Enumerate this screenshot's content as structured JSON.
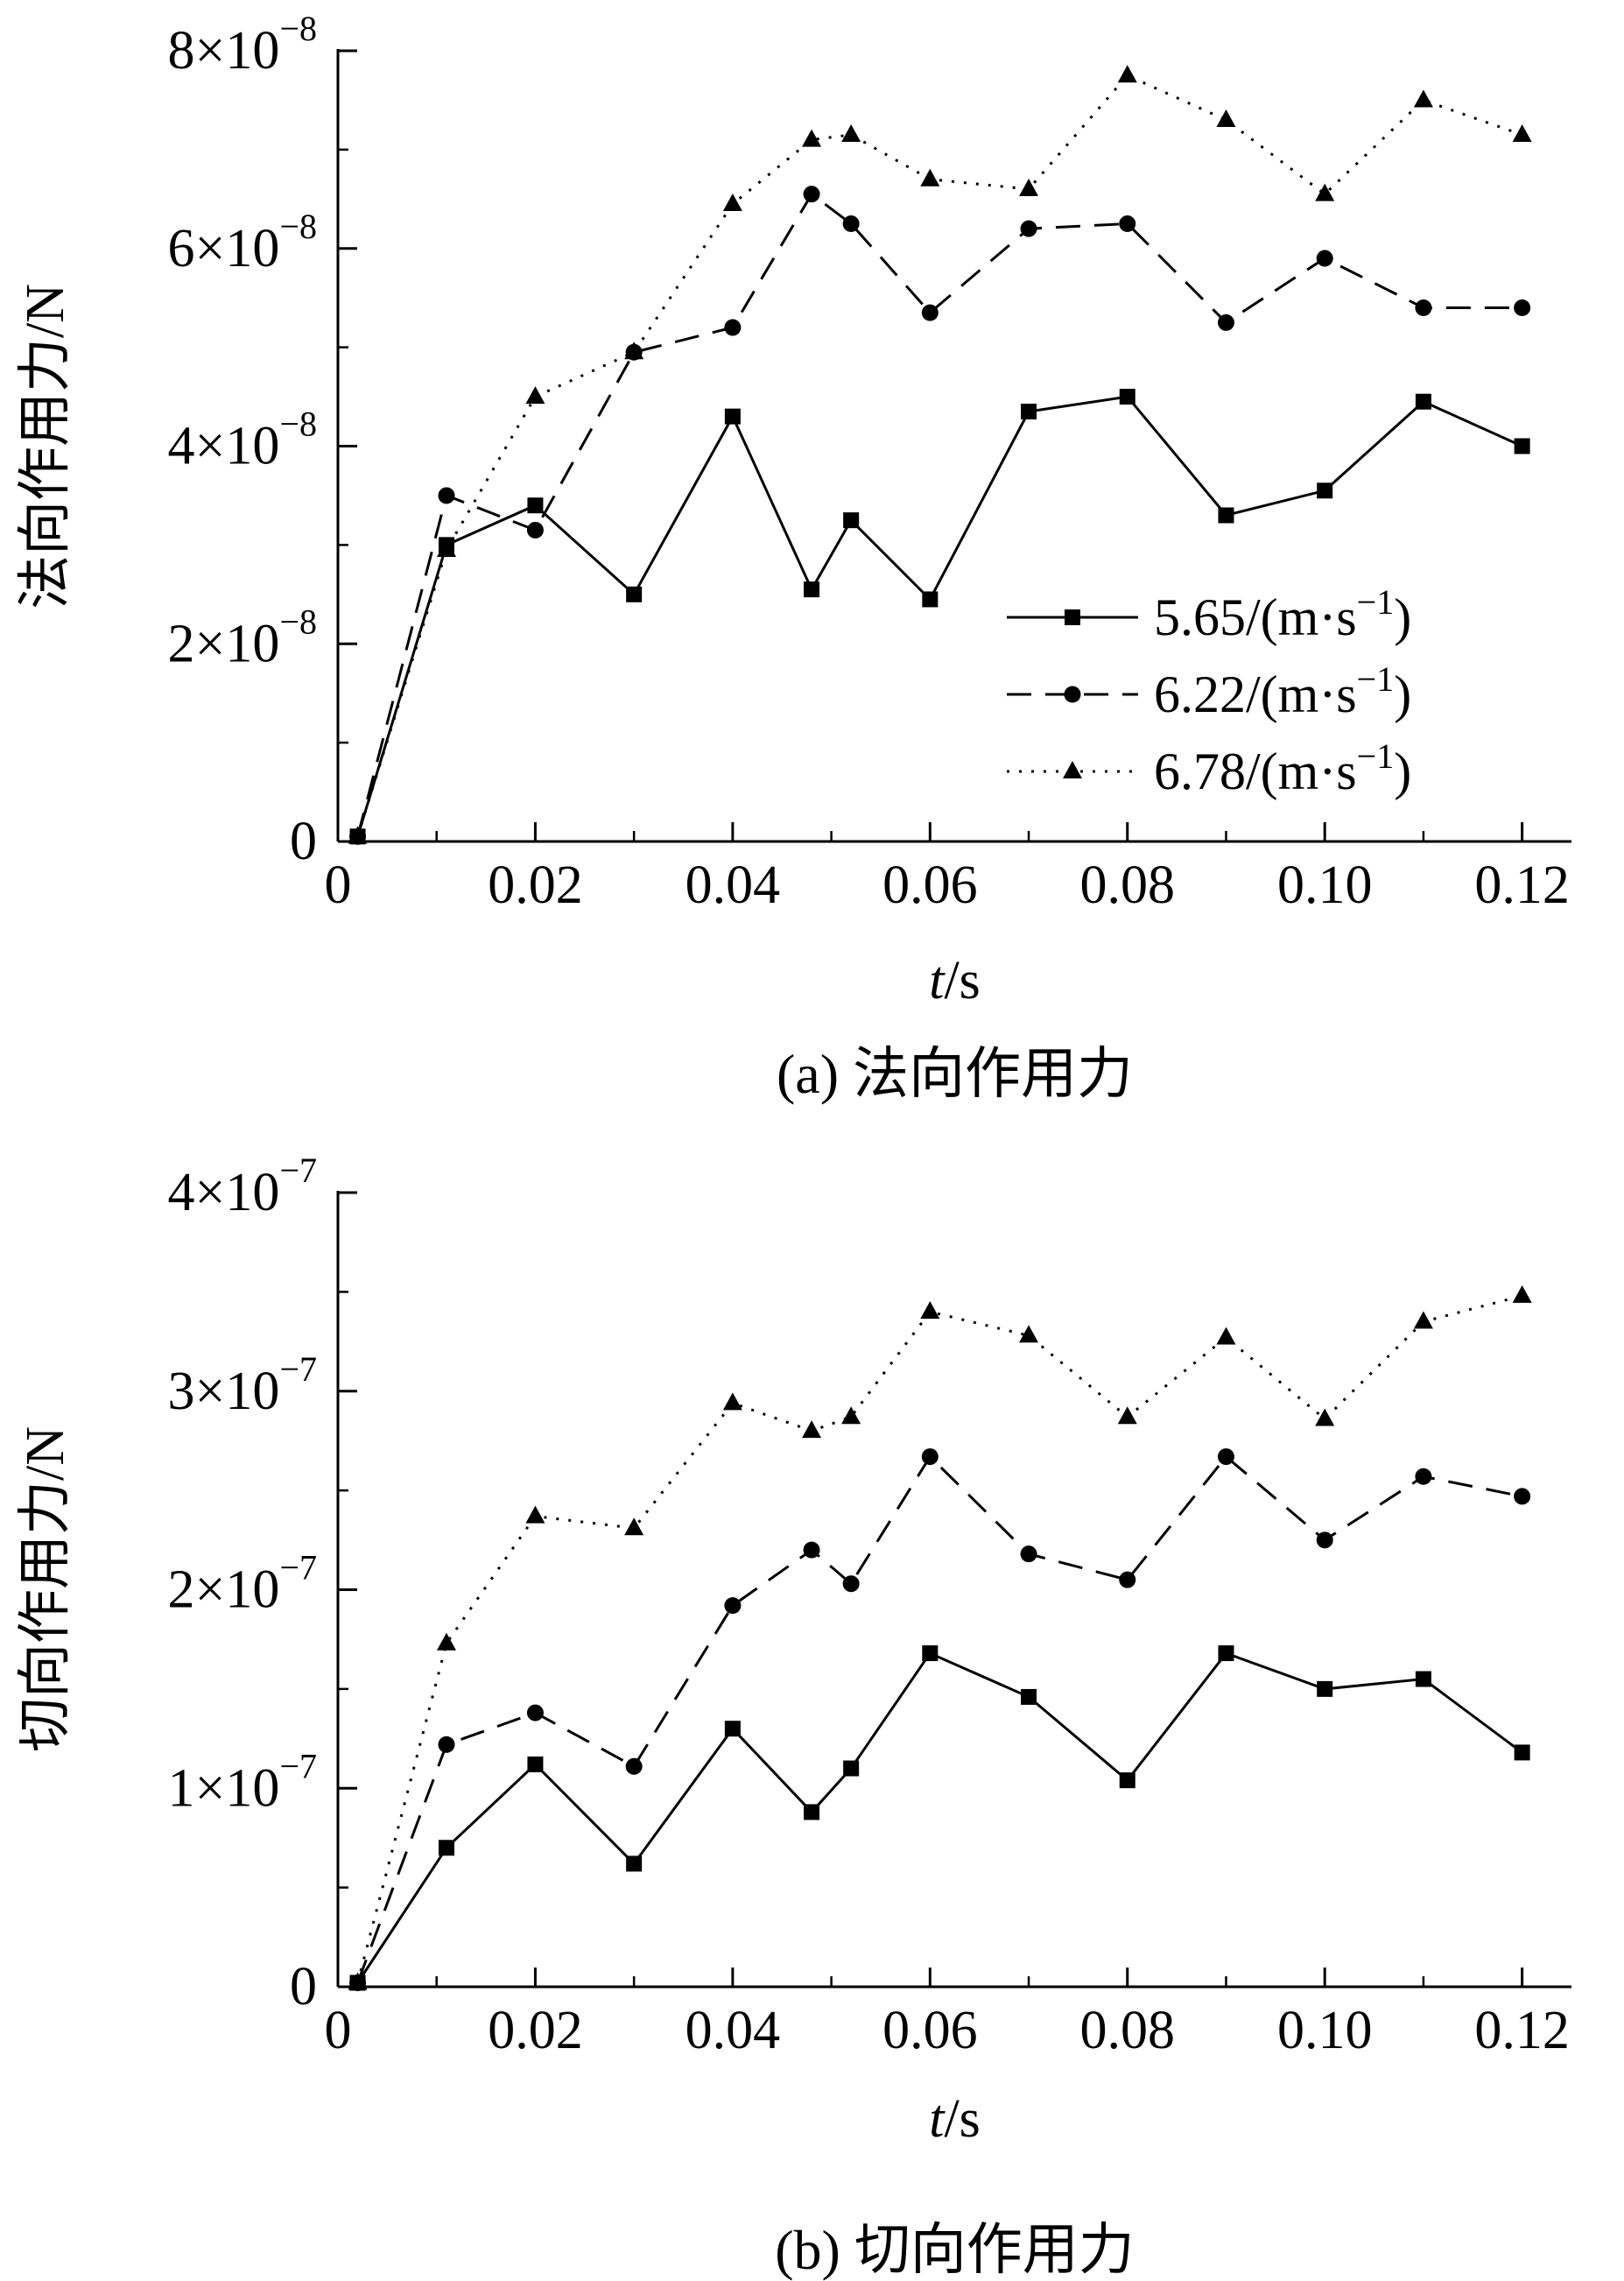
{
  "figure": {
    "background": "#ffffff",
    "ink": "#000000"
  },
  "chart_data": [
    {
      "type": "line",
      "caption": "(a) 法向作用力",
      "xlabel_italic": "t",
      "xlabel_rest": "/s",
      "ylabel": "法向作用力/N",
      "value_scale": "1e-8",
      "xlim": [
        0,
        0.125
      ],
      "ylim": [
        0,
        8
      ],
      "grid": false,
      "x": [
        0.002,
        0.011,
        0.02,
        0.03,
        0.04,
        0.048,
        0.052,
        0.06,
        0.07,
        0.08,
        0.09,
        0.1,
        0.11,
        0.12
      ],
      "xticks": [
        {
          "v": 0,
          "label": "0"
        },
        {
          "v": 0.02,
          "label": "0.02"
        },
        {
          "v": 0.04,
          "label": "0.04"
        },
        {
          "v": 0.06,
          "label": "0.06"
        },
        {
          "v": 0.08,
          "label": "0.08"
        },
        {
          "v": 0.1,
          "label": "0.10"
        },
        {
          "v": 0.12,
          "label": "0.12"
        }
      ],
      "xminor_step": 0.01,
      "yticks": [
        {
          "v": 0,
          "text": "0",
          "exp": ""
        },
        {
          "v": 2,
          "text": "2×10",
          "exp": "−8"
        },
        {
          "v": 4,
          "text": "4×10",
          "exp": "−8"
        },
        {
          "v": 6,
          "text": "6×10",
          "exp": "−8"
        },
        {
          "v": 8,
          "text": "8×10",
          "exp": "−8"
        }
      ],
      "yminor_step": 1,
      "legend": {
        "position": "inside-right-middle",
        "items": [
          {
            "pre": "5.65/(m·s",
            "sup": "−1",
            "post": ")"
          },
          {
            "pre": "6.22/(m·s",
            "sup": "−1",
            "post": ")"
          },
          {
            "pre": "6.78/(m·s",
            "sup": "−1",
            "post": ")"
          }
        ]
      },
      "series": [
        {
          "name": "5.65/(m·s−1)",
          "marker": "square",
          "line": "solid",
          "values": [
            0.05,
            3.0,
            3.4,
            2.5,
            4.3,
            2.55,
            3.25,
            2.45,
            4.35,
            4.5,
            3.3,
            3.55,
            4.45,
            4.0
          ]
        },
        {
          "name": "6.22/(m·s−1)",
          "marker": "circle",
          "line": "dashed",
          "values": [
            0.05,
            3.5,
            3.15,
            4.95,
            5.2,
            6.55,
            6.25,
            5.35,
            6.2,
            6.25,
            5.25,
            5.9,
            5.4,
            5.4
          ]
        },
        {
          "name": "6.78/(m·s−1)",
          "marker": "triangle",
          "line": "dotted",
          "values": [
            0.05,
            2.95,
            4.5,
            4.95,
            6.45,
            7.1,
            7.15,
            6.7,
            6.6,
            7.75,
            7.3,
            6.55,
            7.5,
            7.15
          ]
        }
      ]
    },
    {
      "type": "line",
      "caption": "(b) 切向作用力",
      "xlabel_italic": "t",
      "xlabel_rest": "/s",
      "ylabel": "切向作用力/N",
      "value_scale": "1e-7",
      "xlim": [
        0,
        0.125
      ],
      "ylim": [
        0,
        4
      ],
      "grid": false,
      "x": [
        0.002,
        0.011,
        0.02,
        0.03,
        0.04,
        0.048,
        0.052,
        0.06,
        0.07,
        0.08,
        0.09,
        0.1,
        0.11,
        0.12
      ],
      "xticks": [
        {
          "v": 0,
          "label": "0"
        },
        {
          "v": 0.02,
          "label": "0.02"
        },
        {
          "v": 0.04,
          "label": "0.04"
        },
        {
          "v": 0.06,
          "label": "0.06"
        },
        {
          "v": 0.08,
          "label": "0.08"
        },
        {
          "v": 0.1,
          "label": "0.10"
        },
        {
          "v": 0.12,
          "label": "0.12"
        }
      ],
      "xminor_step": 0.01,
      "yticks": [
        {
          "v": 0,
          "text": "0",
          "exp": ""
        },
        {
          "v": 1,
          "text": "1×10",
          "exp": "−7"
        },
        {
          "v": 2,
          "text": "2×10",
          "exp": "−7"
        },
        {
          "v": 3,
          "text": "3×10",
          "exp": "−7"
        },
        {
          "v": 4,
          "text": "4×10",
          "exp": "−7"
        }
      ],
      "yminor_step": 0.5,
      "legend": null,
      "series": [
        {
          "name": "5.65/(m·s−1)",
          "marker": "square",
          "line": "solid",
          "values": [
            0.02,
            0.7,
            1.12,
            0.62,
            1.3,
            0.88,
            1.1,
            1.68,
            1.46,
            1.04,
            1.68,
            1.5,
            1.55,
            1.18
          ]
        },
        {
          "name": "6.22/(m·s−1)",
          "marker": "circle",
          "line": "dashed",
          "values": [
            0.02,
            1.22,
            1.38,
            1.11,
            1.92,
            2.2,
            2.03,
            2.67,
            2.18,
            2.05,
            2.67,
            2.25,
            2.57,
            2.47
          ]
        },
        {
          "name": "6.78/(m·s−1)",
          "marker": "triangle",
          "line": "dotted",
          "values": [
            0.02,
            1.73,
            2.37,
            2.31,
            2.94,
            2.8,
            2.87,
            3.4,
            3.28,
            2.87,
            3.27,
            2.86,
            3.35,
            3.48
          ]
        }
      ]
    }
  ]
}
